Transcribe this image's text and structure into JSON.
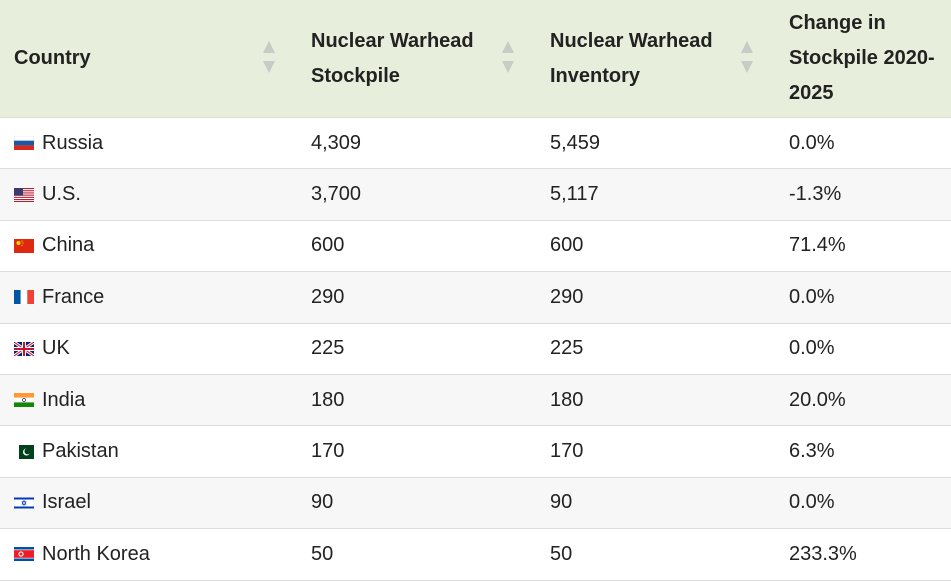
{
  "table": {
    "headers": [
      "Country",
      "Nuclear Warhead Stockpile",
      "Nuclear Warhead Inventory",
      "Change in Stockpile 2020-2025"
    ],
    "rows": [
      [
        "Russia",
        "4,309",
        "5,459",
        "0.0%"
      ],
      [
        "U.S.",
        "3,700",
        "5,117",
        "-1.3%"
      ],
      [
        "China",
        "600",
        "600",
        "71.4%"
      ],
      [
        "France",
        "290",
        "290",
        "0.0%"
      ],
      [
        "UK",
        "225",
        "225",
        "0.0%"
      ],
      [
        "India",
        "180",
        "180",
        "20.0%"
      ],
      [
        "Pakistan",
        "170",
        "170",
        "6.3%"
      ],
      [
        "Israel",
        "90",
        "90",
        "0.0%"
      ],
      [
        "North Korea",
        "50",
        "50",
        "233.3%"
      ]
    ]
  }
}
